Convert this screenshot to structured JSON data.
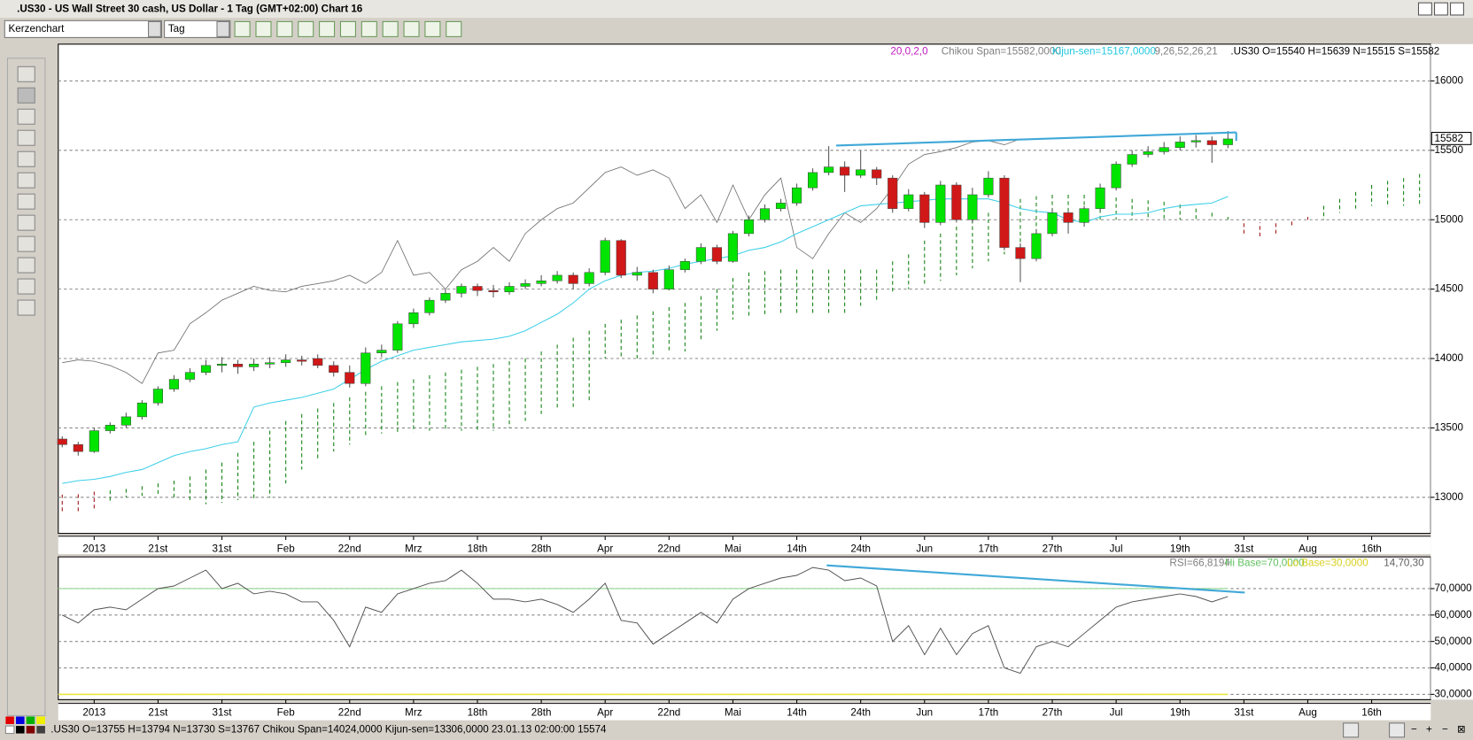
{
  "window": {
    "title": ".US30 - US Wall Street 30 cash, US Dollar - 1 Tag (GMT+02:00)   Chart 16",
    "chart_style": "Kerzenchart",
    "period": "Tag",
    "status": ".US30 O=13755 H=13794 N=13730 S=13767  Chikou Span=14024,0000  Kijun-sen=13306,0000   23.01.13 02:00:00  15574"
  },
  "chart_data": [
    {
      "type": "candlestick",
      "legend": {
        "params": "20,0,2,0",
        "chikou": "Chikou Span=15582,0000",
        "kijun": "Kijun-sen=15167,0000",
        "params2": "9,26,52,26,21",
        "ohlc": ".US30 O=15540 H=15639 N=15515 S=15582"
      },
      "open": [
        13420,
        13380,
        13330,
        13480,
        13520,
        13580,
        13680,
        13780,
        13850,
        13900,
        13950,
        13960,
        13940,
        13960,
        13970,
        13990,
        14000,
        13950,
        13900,
        13820,
        14040,
        14060,
        14250,
        14330,
        14420,
        14470,
        14520,
        14490,
        14480,
        14520,
        14540,
        14560,
        14600,
        14540,
        14620,
        14850,
        14600,
        14620,
        14500,
        14640,
        14700,
        14800,
        14700,
        14900,
        15000,
        15080,
        15120,
        15230,
        15340,
        15380,
        15320,
        15360,
        15300,
        15080,
        15180,
        14980,
        15250,
        15000,
        15180,
        15300,
        14800,
        14720,
        14900,
        15050,
        14980,
        15080,
        15230,
        15400,
        15470,
        15490,
        15520,
        15560,
        15570,
        15540
      ],
      "high": [
        13440,
        13400,
        13500,
        13540,
        13610,
        13700,
        13800,
        13880,
        13930,
        13990,
        14010,
        13990,
        14000,
        14010,
        14030,
        14020,
        14030,
        13980,
        13950,
        14080,
        14100,
        14270,
        14360,
        14440,
        14500,
        14540,
        14540,
        14530,
        14550,
        14570,
        14600,
        14630,
        14620,
        14650,
        14870,
        14860,
        14660,
        14640,
        14670,
        14720,
        14830,
        14820,
        14920,
        15030,
        15110,
        15150,
        15260,
        15370,
        15530,
        15420,
        15500,
        15380,
        15320,
        15220,
        15200,
        15280,
        15270,
        15230,
        15350,
        15320,
        14830,
        14930,
        15080,
        15070,
        15100,
        15260,
        15420,
        15500,
        15530,
        15560,
        15600,
        15610,
        15600,
        15639
      ],
      "low": [
        13360,
        13300,
        13320,
        13460,
        13500,
        13560,
        13660,
        13760,
        13830,
        13880,
        13900,
        13890,
        13910,
        13930,
        13940,
        13950,
        13930,
        13870,
        13790,
        13800,
        14010,
        14040,
        14220,
        14310,
        14400,
        14440,
        14450,
        14440,
        14460,
        14500,
        14520,
        14540,
        14500,
        14520,
        14600,
        14580,
        14560,
        14470,
        14490,
        14620,
        14680,
        14680,
        14690,
        14880,
        14980,
        15060,
        15100,
        15210,
        15320,
        15200,
        15300,
        15250,
        15050,
        15060,
        14940,
        14960,
        14980,
        14980,
        15160,
        14780,
        14550,
        14700,
        14880,
        14900,
        14950,
        15060,
        15210,
        15380,
        15450,
        15470,
        15500,
        15520,
        15410,
        15515
      ],
      "close": [
        13380,
        13330,
        13480,
        13520,
        13580,
        13680,
        13780,
        13850,
        13900,
        13950,
        13960,
        13940,
        13960,
        13970,
        13990,
        13980,
        13950,
        13900,
        13820,
        14040,
        14060,
        14250,
        14330,
        14420,
        14470,
        14520,
        14490,
        14480,
        14520,
        14540,
        14560,
        14600,
        14540,
        14620,
        14850,
        14600,
        14620,
        14500,
        14640,
        14700,
        14800,
        14700,
        14900,
        15000,
        15080,
        15120,
        15230,
        15340,
        15380,
        15320,
        15360,
        15300,
        15080,
        15180,
        14980,
        15250,
        15000,
        15180,
        15300,
        14800,
        14720,
        14900,
        15050,
        14980,
        15080,
        15230,
        15400,
        15470,
        15490,
        15520,
        15560,
        15570,
        15540,
        15582
      ],
      "up_color": "#00e400",
      "down_color": "#d01818",
      "kijun": {
        "color": "#3fd0e8",
        "values": [
          13100,
          13120,
          13130,
          13150,
          13180,
          13200,
          13250,
          13300,
          13330,
          13350,
          13380,
          13400,
          13650,
          13680,
          13700,
          13720,
          13750,
          13780,
          13850,
          13920,
          13980,
          14020,
          14060,
          14080,
          14100,
          14120,
          14130,
          14140,
          14160,
          14200,
          14260,
          14320,
          14400,
          14500,
          14560,
          14600,
          14620,
          14630,
          14650,
          14680,
          14700,
          14720,
          14740,
          14780,
          14800,
          14840,
          14900,
          14950,
          15000,
          15050,
          15100,
          15110,
          15120,
          15130,
          15140,
          15150,
          15150,
          15150,
          15150,
          15120,
          15080,
          15060,
          15050,
          15000,
          14980,
          15020,
          15040,
          15040,
          15050,
          15080,
          15100,
          15110,
          15120,
          15167
        ]
      },
      "chikou": {
        "color": "#707070",
        "values": [
          13970,
          13990,
          13980,
          13950,
          13900,
          13820,
          14040,
          14060,
          14250,
          14330,
          14420,
          14470,
          14520,
          14490,
          14480,
          14520,
          14540,
          14560,
          14600,
          14540,
          14620,
          14850,
          14600,
          14620,
          14500,
          14640,
          14700,
          14800,
          14700,
          14900,
          15000,
          15080,
          15120,
          15230,
          15340,
          15380,
          15320,
          15360,
          15300,
          15080,
          15180,
          14980,
          15250,
          15000,
          15180,
          15300,
          14800,
          14720,
          14900,
          15050,
          14980,
          15080,
          15230,
          15400,
          15470,
          15490,
          15520,
          15560,
          15570,
          15540,
          15582,
          null,
          null,
          null,
          null,
          null,
          null,
          null,
          null,
          null,
          null,
          null,
          null,
          null
        ]
      },
      "cloud": {
        "up_color": "#108010",
        "down_color": "#a01010",
        "a": [
          12900,
          12900,
          12920,
          13050,
          13060,
          13080,
          13100,
          13120,
          13150,
          13200,
          13250,
          13320,
          13400,
          13480,
          13550,
          13600,
          13640,
          13680,
          13720,
          13760,
          13800,
          13830,
          13850,
          13880,
          13900,
          13920,
          13940,
          13960,
          13980,
          14000,
          14050,
          14100,
          14150,
          14200,
          14250,
          14280,
          14310,
          14340,
          14370,
          14400,
          14450,
          14500,
          14580,
          14620,
          14630,
          14640,
          14640,
          14640,
          14640,
          14640,
          14640,
          14640,
          14700,
          14750,
          14850,
          14900,
          14950,
          15000,
          15050,
          15100,
          15150,
          15170,
          15180,
          15180,
          15180,
          15170,
          15160,
          15150,
          15140,
          15130,
          15110,
          15080,
          15050,
          15020,
          14900,
          14880,
          14900,
          14960,
          15000,
          15100,
          15150,
          15200,
          15250,
          15280,
          15300,
          15330
        ],
        "b": [
          13020,
          13030,
          13040,
          12960,
          13000,
          13010,
          13020,
          13000,
          12970,
          12950,
          12960,
          12980,
          12990,
          13000,
          13100,
          13200,
          13280,
          13330,
          13380,
          13430,
          13460,
          13470,
          13470,
          13480,
          13480,
          13480,
          13480,
          13480,
          13500,
          13550,
          13600,
          13640,
          13650,
          13680,
          14000,
          14000,
          14000,
          14000,
          14050,
          14050,
          14120,
          14200,
          14280,
          14300,
          14320,
          14320,
          14320,
          14320,
          14320,
          14320,
          14380,
          14420,
          14470,
          14500,
          14520,
          14560,
          14600,
          14650,
          14700,
          14750,
          14800,
          14850,
          14900,
          14950,
          14980,
          14990,
          15000,
          15000,
          15000,
          15000,
          15000,
          15000,
          15000,
          15000,
          15000,
          14980,
          14980,
          15000,
          15020,
          15000,
          15050,
          15080,
          15100,
          15100,
          15100,
          15100
        ]
      },
      "xlim": [
        -0.25,
        85.7
      ],
      "xticks": [
        {
          "value": 2,
          "label": "2013"
        },
        {
          "value": 6,
          "label": "21st"
        },
        {
          "value": 10,
          "label": "31st"
        },
        {
          "value": 14,
          "label": "Feb"
        },
        {
          "value": 18,
          "label": "22nd"
        },
        {
          "value": 22,
          "label": "Mrz"
        },
        {
          "value": 26,
          "label": "18th"
        },
        {
          "value": 30,
          "label": "28th"
        },
        {
          "value": 34,
          "label": "Apr"
        },
        {
          "value": 38,
          "label": "22nd"
        },
        {
          "value": 42,
          "label": "Mai"
        },
        {
          "value": 46,
          "label": "14th"
        },
        {
          "value": 50,
          "label": "24th"
        },
        {
          "value": 54,
          "label": "Jun"
        },
        {
          "value": 58,
          "label": "17th"
        },
        {
          "value": 62,
          "label": "27th"
        },
        {
          "value": 66,
          "label": "Jul"
        },
        {
          "value": 70,
          "label": "19th"
        },
        {
          "value": 74,
          "label": "31st"
        },
        {
          "value": 78,
          "label": "Aug"
        },
        {
          "value": 82,
          "label": "16th"
        }
      ],
      "ylim": [
        12740,
        16265
      ],
      "yticks": [
        13000,
        13500,
        14000,
        14500,
        15000,
        15500,
        16000
      ],
      "grid": true
    },
    {
      "type": "line",
      "legend": {
        "rsi": "RSI=66,8194",
        "hi": "Hi Base=70,0000",
        "lo": "Lo Base=30,0000",
        "params": "14,70,30"
      },
      "color": "#505050",
      "values": [
        60,
        57,
        62,
        63,
        62,
        66,
        70,
        71,
        74,
        77,
        70,
        72,
        68,
        69,
        68,
        65,
        65,
        58,
        48,
        63,
        61,
        68,
        70,
        72,
        73,
        77,
        72,
        66,
        66,
        65,
        66,
        64,
        61,
        66,
        72,
        58,
        57,
        49,
        53,
        57,
        61,
        57,
        66,
        70,
        72,
        74,
        75,
        78,
        77,
        73,
        74,
        71,
        50,
        56,
        45,
        55,
        45,
        53,
        56,
        40,
        38,
        48,
        50,
        48,
        53,
        58,
        63,
        65,
        66,
        67,
        68,
        67,
        65,
        67
      ],
      "hi_base": 70,
      "hi_color": "#90d890",
      "lo_base": 30,
      "lo_color": "#e8e840",
      "xlim": [
        -0.25,
        85.7
      ],
      "xticks": [
        {
          "value": 2,
          "label": "2013"
        },
        {
          "value": 6,
          "label": "21st"
        },
        {
          "value": 10,
          "label": "31st"
        },
        {
          "value": 14,
          "label": "Feb"
        },
        {
          "value": 18,
          "label": "22nd"
        },
        {
          "value": 22,
          "label": "Mrz"
        },
        {
          "value": 26,
          "label": "18th"
        },
        {
          "value": 30,
          "label": "28th"
        },
        {
          "value": 34,
          "label": "Apr"
        },
        {
          "value": 38,
          "label": "22nd"
        },
        {
          "value": 42,
          "label": "Mai"
        },
        {
          "value": 46,
          "label": "14th"
        },
        {
          "value": 50,
          "label": "24th"
        },
        {
          "value": 54,
          "label": "Jun"
        },
        {
          "value": 58,
          "label": "17th"
        },
        {
          "value": 62,
          "label": "27th"
        },
        {
          "value": 66,
          "label": "Jul"
        },
        {
          "value": 70,
          "label": "19th"
        },
        {
          "value": 74,
          "label": "31st"
        },
        {
          "value": 78,
          "label": "Aug"
        },
        {
          "value": 82,
          "label": "16th"
        }
      ],
      "ylim": [
        28,
        82
      ],
      "yticks": [
        {
          "value": 30,
          "label": "30,0000"
        },
        {
          "value": 40,
          "label": "40,0000"
        },
        {
          "value": 50,
          "label": "50,0000"
        },
        {
          "value": 60,
          "label": "60,0000"
        },
        {
          "value": 70,
          "label": "70,0000"
        }
      ],
      "grid": true
    }
  ]
}
